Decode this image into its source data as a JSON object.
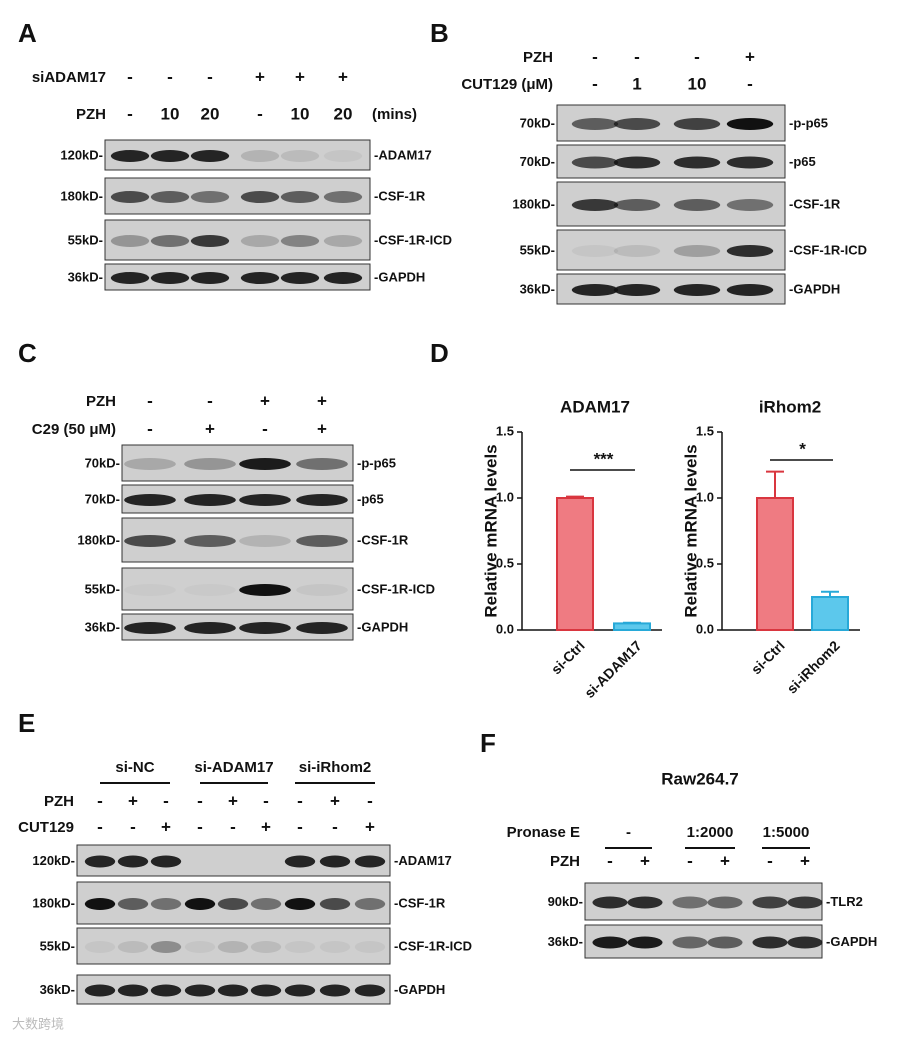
{
  "panels": [
    {
      "letter": "A",
      "conditions": [
        {
          "label": "siADAM17",
          "cells": [
            "-",
            "-",
            "-",
            "+",
            "+",
            "+"
          ]
        },
        {
          "label": "PZH",
          "cells": [
            "-",
            "10",
            "20",
            "-",
            "10",
            "20"
          ]
        }
      ],
      "unit": "(mins)",
      "blots": [
        {
          "mw": "120kD-",
          "protein": "-ADAM17"
        },
        {
          "mw": "180kD-",
          "protein": "-CSF-1R"
        },
        {
          "mw": "55kD-",
          "protein": "-CSF-1R-ICD"
        },
        {
          "mw": "36kD-",
          "protein": "-GAPDH"
        }
      ]
    },
    {
      "letter": "B",
      "conditions": [
        {
          "label": "PZH",
          "cells": [
            "-",
            "-",
            "-",
            "+"
          ]
        },
        {
          "label": "CUT129 (μM)",
          "cells": [
            "-",
            "1",
            "10",
            "-"
          ]
        }
      ],
      "blots": [
        {
          "mw": "70kD-",
          "protein": "-p-p65"
        },
        {
          "mw": "70kD-",
          "protein": "-p65"
        },
        {
          "mw": "180kD-",
          "protein": "-CSF-1R"
        },
        {
          "mw": "55kD-",
          "protein": "-CSF-1R-ICD"
        },
        {
          "mw": "36kD-",
          "protein": "-GAPDH"
        }
      ]
    },
    {
      "letter": "C",
      "conditions": [
        {
          "label": "PZH",
          "cells": [
            "-",
            "-",
            "+",
            "+"
          ]
        },
        {
          "label": "C29 (50 μM)",
          "cells": [
            "-",
            "+",
            "-",
            "+"
          ]
        }
      ],
      "blots": [
        {
          "mw": "70kD-",
          "protein": "-p-p65"
        },
        {
          "mw": "70kD-",
          "protein": "-p65"
        },
        {
          "mw": "180kD-",
          "protein": "-CSF-1R"
        },
        {
          "mw": "55kD-",
          "protein": "-CSF-1R-ICD"
        },
        {
          "mw": "36kD-",
          "protein": "-GAPDH"
        }
      ]
    },
    {
      "letter": "D"
    },
    {
      "letter": "E",
      "groups": [
        "si-NC",
        "si-ADAM17",
        "si-iRhom2"
      ],
      "conditions": [
        {
          "label": "PZH",
          "cells": [
            "-",
            "+",
            "-",
            "-",
            "+",
            "-",
            "-",
            "+",
            "-"
          ]
        },
        {
          "label": "CUT129",
          "cells": [
            "-",
            "-",
            "+",
            "-",
            "-",
            "+",
            "-",
            "-",
            "+"
          ]
        }
      ],
      "blots": [
        {
          "mw": "120kD-",
          "protein": "-ADAM17"
        },
        {
          "mw": "180kD-",
          "protein": "-CSF-1R"
        },
        {
          "mw": "55kD-",
          "protein": "-CSF-1R-ICD"
        },
        {
          "mw": "36kD-",
          "protein": "-GAPDH"
        }
      ]
    },
    {
      "letter": "F",
      "title": "Raw264.7",
      "group_label": "Pronase E",
      "groups": [
        "-",
        "1:2000",
        "1:5000"
      ],
      "conditions": [
        {
          "label": "PZH",
          "cells": [
            "-",
            "+",
            "-",
            "+",
            "-",
            "+"
          ]
        }
      ],
      "blots": [
        {
          "mw": "90kD-",
          "protein": "-TLR2"
        },
        {
          "mw": "36kD-",
          "protein": "-GAPDH"
        }
      ]
    }
  ],
  "chart_data": [
    {
      "type": "bar",
      "title": "ADAM17",
      "y_label": "Relative mRNA levels",
      "categories": [
        "si-Ctrl",
        "si-ADAM17"
      ],
      "values": [
        1.0,
        0.05
      ],
      "errors": [
        0.01,
        0.005
      ],
      "colors": [
        "#ef7b82",
        "#5cc8ec"
      ],
      "edge_colors": [
        "#d9363f",
        "#27a9d8"
      ],
      "significance": "***",
      "ylim": [
        0,
        1.5
      ],
      "yticks": [
        {
          "value": 0,
          "label": "0.0"
        },
        0.5,
        {
          "value": 1,
          "label": "1.0"
        },
        1.5
      ]
    },
    {
      "type": "bar",
      "title": "iRhom2",
      "y_label": "Relative mRNA levels",
      "categories": [
        "si-Ctrl",
        "si-iRhom2"
      ],
      "values": [
        1.0,
        0.25
      ],
      "errors": [
        0.2,
        0.04
      ],
      "colors": [
        "#ef7b82",
        "#5cc8ec"
      ],
      "edge_colors": [
        "#d9363f",
        "#27a9d8"
      ],
      "significance": "*",
      "ylim": [
        0,
        1.5
      ],
      "yticks": [
        {
          "value": 0,
          "label": "0.0"
        },
        0.5,
        {
          "value": 1,
          "label": "1.0"
        },
        1.5
      ]
    }
  ],
  "watermark": "大数跨境"
}
